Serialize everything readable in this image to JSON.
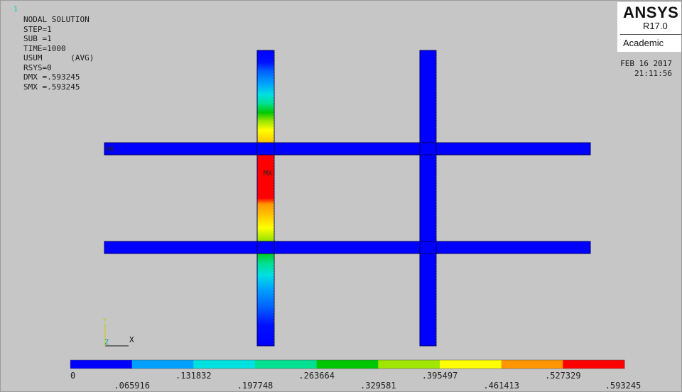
{
  "window_number": "1",
  "info": {
    "title": "NODAL SOLUTION",
    "lines": [
      "STEP=1",
      "SUB =1",
      "TIME=1000",
      "USUM      (AVG)",
      "RSYS=0",
      "DMX =.593245",
      "SMX =.593245"
    ]
  },
  "logo": {
    "brand": "ANSYS",
    "version": "R17.0",
    "edition": "Academic"
  },
  "datetime": {
    "date": "FEB 16 2017",
    "time": "21:11:56"
  },
  "markers": {
    "min": "MN",
    "max": "MX"
  },
  "triad": {
    "x": "X",
    "y": "Y",
    "z": "Z"
  },
  "legend": {
    "colors": [
      "#0000ff",
      "#00a0ff",
      "#00e0e0",
      "#00e090",
      "#00c800",
      "#a0e600",
      "#ffff00",
      "#ff9600",
      "#ff0000"
    ],
    "ticks": [
      "0",
      ".065916",
      ".131832",
      ".197748",
      ".263664",
      ".329581",
      ".395497",
      ".461413",
      ".527329",
      ".593245"
    ]
  }
}
